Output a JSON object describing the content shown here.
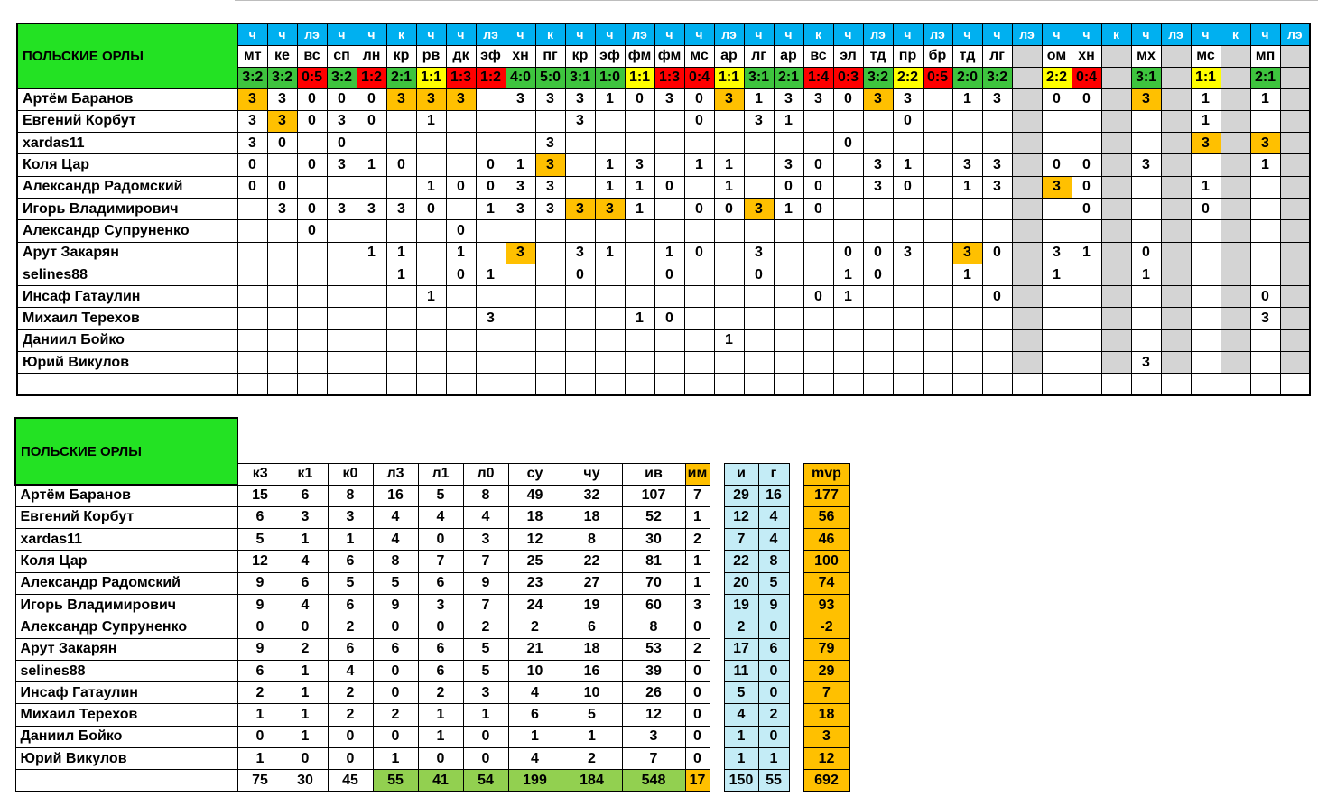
{
  "table1": {
    "team": "ПОЛЬСКИЕ ОРЛЫ",
    "row1": [
      "ч",
      "ч",
      "лэ",
      "ч",
      "ч",
      "к",
      "ч",
      "ч",
      "лэ",
      "ч",
      "к",
      "ч",
      "ч",
      "лэ",
      "ч",
      "ч",
      "лэ",
      "ч",
      "ч",
      "к",
      "ч",
      "лэ",
      "ч",
      "лэ",
      "ч",
      "ч",
      "лэ",
      "ч",
      "ч",
      "к",
      "ч",
      "лэ",
      "ч",
      "к",
      "ч",
      "лэ"
    ],
    "row2": [
      "мт",
      "ке",
      "вс",
      "сп",
      "лн",
      "кр",
      "рв",
      "дк",
      "эф",
      "хн",
      "пг",
      "кр",
      "эф",
      "фм",
      "фм",
      "мс",
      "ар",
      "лг",
      "ар",
      "вс",
      "эл",
      "тд",
      "пр",
      "бр",
      "тд",
      "лг",
      "",
      "ом",
      "хн",
      "",
      "мх",
      "",
      "мс",
      "",
      "мп",
      ""
    ],
    "row3": [
      "3:2",
      "3:2",
      "0:5",
      "3:2",
      "1:2",
      "2:1",
      "1:1",
      "1:3",
      "1:2",
      "4:0",
      "5:0",
      "3:1",
      "1:0",
      "1:1",
      "1:3",
      "0:4",
      "1:1",
      "3:1",
      "2:1",
      "1:4",
      "0:3",
      "3:2",
      "2:2",
      "0:5",
      "2:0",
      "3:2",
      "",
      "2:2",
      "0:4",
      "",
      "3:1",
      "",
      "1:1",
      "",
      "2:1",
      ""
    ],
    "row3c": [
      "g",
      "g",
      "r",
      "g",
      "r",
      "g",
      "y",
      "r",
      "r",
      "g",
      "g",
      "g",
      "g",
      "y",
      "r",
      "r",
      "y",
      "g",
      "g",
      "r",
      "r",
      "g",
      "y",
      "r",
      "g",
      "g",
      "",
      "y",
      "r",
      "",
      "g",
      "",
      "y",
      "",
      "g",
      ""
    ],
    "players": [
      {
        "name": "Артём Баранов",
        "cells": [
          "3",
          "3",
          "0",
          "0",
          "0",
          "3",
          "3",
          "3",
          "",
          "3",
          "3",
          "3",
          "1",
          "0",
          "3",
          "0",
          "3",
          "1",
          "3",
          "3",
          "0",
          "3",
          "3",
          "",
          "1",
          "3",
          "",
          "0",
          "0",
          "",
          "3",
          "",
          "1",
          "",
          "1",
          ""
        ],
        "hl": [
          0,
          5,
          6,
          7,
          16,
          21,
          30
        ]
      },
      {
        "name": "Евгений Корбут",
        "cells": [
          "3",
          "3",
          "0",
          "3",
          "0",
          "",
          "1",
          "",
          "",
          "",
          "",
          "3",
          "",
          "",
          "",
          "0",
          "",
          "3",
          "1",
          "",
          "",
          "",
          "0",
          "",
          "",
          "",
          "",
          "",
          "",
          "",
          "",
          "",
          "1",
          "",
          "",
          ""
        ],
        "hl": [
          1
        ]
      },
      {
        "name": "xardas11",
        "cells": [
          "3",
          "0",
          "",
          "0",
          "",
          "",
          "",
          "",
          "",
          "",
          "3",
          "",
          "",
          "",
          "",
          "",
          "",
          "",
          "",
          "",
          "0",
          "",
          "",
          "",
          "",
          "",
          "",
          "",
          "",
          "",
          "",
          "",
          "3",
          "",
          "3",
          ""
        ],
        "hl": [
          32,
          34
        ]
      },
      {
        "name": "Коля Цар",
        "cells": [
          "0",
          "",
          "0",
          "3",
          "1",
          "0",
          "",
          "",
          "0",
          "1",
          "3",
          "",
          "1",
          "3",
          "",
          "1",
          "1",
          "",
          "3",
          "0",
          "",
          "3",
          "1",
          "",
          "3",
          "3",
          "",
          "0",
          "0",
          "",
          "3",
          "",
          "",
          "",
          "1",
          ""
        ],
        "hl": [
          10
        ]
      },
      {
        "name": "Александр Радомский",
        "cells": [
          "0",
          "0",
          "",
          "",
          "",
          "",
          "1",
          "0",
          "0",
          "3",
          "3",
          "",
          "1",
          "1",
          "0",
          "",
          "1",
          "",
          "0",
          "0",
          "",
          "3",
          "0",
          "",
          "1",
          "3",
          "",
          "3",
          "0",
          "",
          "",
          "",
          "1",
          "",
          "",
          ""
        ],
        "hl": [
          27
        ]
      },
      {
        "name": "Игорь Владимирович",
        "cells": [
          "",
          "3",
          "0",
          "3",
          "3",
          "3",
          "0",
          "",
          "1",
          "3",
          "3",
          "3",
          "3",
          "1",
          "",
          "0",
          "0",
          "3",
          "1",
          "0",
          "",
          "",
          "",
          "",
          "",
          "",
          "",
          "",
          "0",
          "",
          "",
          "",
          "0",
          "",
          "",
          ""
        ],
        "hl": [
          11,
          12,
          17
        ]
      },
      {
        "name": "Александр Супруненко",
        "cells": [
          "",
          "",
          "0",
          "",
          "",
          "",
          "",
          "0",
          "",
          "",
          "",
          "",
          "",
          "",
          "",
          "",
          "",
          "",
          "",
          "",
          "",
          "",
          "",
          "",
          "",
          "",
          "",
          "",
          "",
          "",
          "",
          "",
          "",
          "",
          "",
          ""
        ],
        "hl": []
      },
      {
        "name": "Арут Закарян",
        "cells": [
          "",
          "",
          "",
          "",
          "1",
          "1",
          "",
          "1",
          "",
          "3",
          "",
          "3",
          "1",
          "",
          "1",
          "0",
          "",
          "3",
          "",
          "",
          "0",
          "0",
          "3",
          "",
          "3",
          "0",
          "",
          "3",
          "1",
          "",
          "0",
          "",
          "",
          "",
          "",
          ""
        ],
        "hl": [
          9,
          24
        ]
      },
      {
        "name": "selines88",
        "cells": [
          "",
          "",
          "",
          "",
          "",
          "1",
          "",
          "0",
          "1",
          "",
          "",
          "0",
          "",
          "",
          "0",
          "",
          "",
          "0",
          "",
          "",
          "1",
          "0",
          "",
          "",
          "1",
          "",
          "",
          "1",
          "",
          "",
          "1",
          "",
          "",
          "",
          "",
          ""
        ],
        "hl": []
      },
      {
        "name": "Инсаф Гатаулин",
        "cells": [
          "",
          "",
          "",
          "",
          "",
          "",
          "1",
          "",
          "",
          "",
          "",
          "",
          "",
          "",
          "",
          "",
          "",
          "",
          "",
          "0",
          "1",
          "",
          "",
          "",
          "",
          "0",
          "",
          "",
          "",
          "",
          "",
          "",
          "",
          "",
          "0",
          ""
        ],
        "hl": []
      },
      {
        "name": "Михаил Терехов",
        "cells": [
          "",
          "",
          "",
          "",
          "",
          "",
          "",
          "",
          "3",
          "",
          "",
          "",
          "",
          "1",
          "0",
          "",
          "",
          "",
          "",
          "",
          "",
          "",
          "",
          "",
          "",
          "",
          "",
          "",
          "",
          "",
          "",
          "",
          "",
          "",
          "3",
          ""
        ],
        "hl": []
      },
      {
        "name": "Даниил Бойко",
        "cells": [
          "",
          "",
          "",
          "",
          "",
          "",
          "",
          "",
          "",
          "",
          "",
          "",
          "",
          "",
          "",
          "",
          "1",
          "",
          "",
          "",
          "",
          "",
          "",
          "",
          "",
          "",
          "",
          "",
          "",
          "",
          "",
          "",
          "",
          "",
          "",
          ""
        ],
        "hl": []
      },
      {
        "name": "Юрий Викулов",
        "cells": [
          "",
          "",
          "",
          "",
          "",
          "",
          "",
          "",
          "",
          "",
          "",
          "",
          "",
          "",
          "",
          "",
          "",
          "",
          "",
          "",
          "",
          "",
          "",
          "",
          "",
          "",
          "",
          "",
          "",
          "",
          "3",
          "",
          "",
          "",
          "",
          ""
        ],
        "hl": []
      }
    ]
  },
  "table2": {
    "team": "ПОЛЬСКИЕ ОРЛЫ",
    "headers": [
      "к3",
      "к1",
      "к0",
      "л3",
      "л1",
      "л0",
      "су",
      "чу",
      "ив",
      "им"
    ],
    "headers_b": [
      "и",
      "г"
    ],
    "header_mvp": "mvp",
    "rows": [
      {
        "name": "Артём Баранов",
        "v": [
          "15",
          "6",
          "8",
          "16",
          "5",
          "8",
          "49",
          "32",
          "107",
          "7"
        ],
        "b": [
          "29",
          "16"
        ],
        "mvp": "177"
      },
      {
        "name": "Евгений Корбут",
        "v": [
          "6",
          "3",
          "3",
          "4",
          "4",
          "4",
          "18",
          "18",
          "52",
          "1"
        ],
        "b": [
          "12",
          "4"
        ],
        "mvp": "56"
      },
      {
        "name": "xardas11",
        "v": [
          "5",
          "1",
          "1",
          "4",
          "0",
          "3",
          "12",
          "8",
          "30",
          "2"
        ],
        "b": [
          "7",
          "4"
        ],
        "mvp": "46"
      },
      {
        "name": "Коля Цар",
        "v": [
          "12",
          "4",
          "6",
          "8",
          "7",
          "7",
          "25",
          "22",
          "81",
          "1"
        ],
        "b": [
          "22",
          "8"
        ],
        "mvp": "100"
      },
      {
        "name": "Александр Радомский",
        "v": [
          "9",
          "6",
          "5",
          "5",
          "6",
          "9",
          "23",
          "27",
          "70",
          "1"
        ],
        "b": [
          "20",
          "5"
        ],
        "mvp": "74"
      },
      {
        "name": "Игорь Владимирович",
        "v": [
          "9",
          "4",
          "6",
          "9",
          "3",
          "7",
          "24",
          "19",
          "60",
          "3"
        ],
        "b": [
          "19",
          "9"
        ],
        "mvp": "93"
      },
      {
        "name": "Александр Супруненко",
        "v": [
          "0",
          "0",
          "2",
          "0",
          "0",
          "2",
          "2",
          "6",
          "8",
          "0"
        ],
        "b": [
          "2",
          "0"
        ],
        "mvp": "-2"
      },
      {
        "name": "Арут Закарян",
        "v": [
          "9",
          "2",
          "6",
          "6",
          "6",
          "5",
          "21",
          "18",
          "53",
          "2"
        ],
        "b": [
          "17",
          "6"
        ],
        "mvp": "79"
      },
      {
        "name": "selines88",
        "v": [
          "6",
          "1",
          "4",
          "0",
          "6",
          "5",
          "10",
          "16",
          "39",
          "0"
        ],
        "b": [
          "11",
          "0"
        ],
        "mvp": "29"
      },
      {
        "name": "Инсаф Гатаулин",
        "v": [
          "2",
          "1",
          "2",
          "0",
          "2",
          "3",
          "4",
          "10",
          "26",
          "0"
        ],
        "b": [
          "5",
          "0"
        ],
        "mvp": "7"
      },
      {
        "name": "Михаил Терехов",
        "v": [
          "1",
          "1",
          "2",
          "2",
          "1",
          "1",
          "6",
          "5",
          "12",
          "0"
        ],
        "b": [
          "4",
          "2"
        ],
        "mvp": "18"
      },
      {
        "name": "Даниил Бойко",
        "v": [
          "0",
          "1",
          "0",
          "0",
          "1",
          "0",
          "1",
          "1",
          "3",
          "0"
        ],
        "b": [
          "1",
          "0"
        ],
        "mvp": "3"
      },
      {
        "name": "Юрий Викулов",
        "v": [
          "1",
          "0",
          "0",
          "1",
          "0",
          "0",
          "4",
          "2",
          "7",
          "0"
        ],
        "b": [
          "1",
          "1"
        ],
        "mvp": "12"
      }
    ],
    "totals": {
      "v": [
        "75",
        "30",
        "45",
        "55",
        "41",
        "54",
        "199",
        "184",
        "548",
        "17"
      ],
      "b": [
        "150",
        "55"
      ],
      "mvp": "692"
    }
  }
}
